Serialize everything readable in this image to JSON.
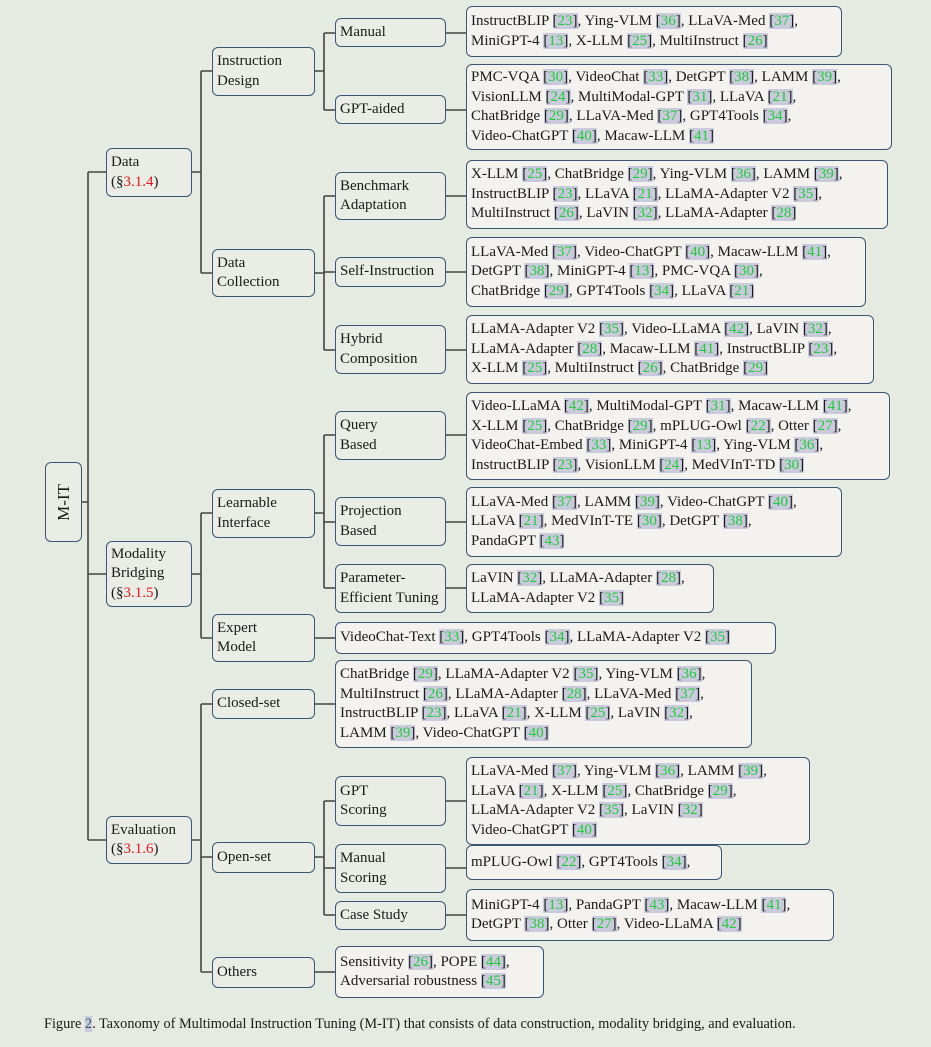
{
  "root": {
    "label": "M-IT"
  },
  "level1": [
    {
      "label": "Data",
      "section": "3.1.4"
    },
    {
      "label": "Modality Bridging",
      "section": "3.1.5"
    },
    {
      "label": "Evaluation",
      "section": "3.1.6"
    }
  ],
  "level2": {
    "instruction_design": [
      "Instruction",
      "Design"
    ],
    "data_collection": [
      "Data",
      "Collection"
    ],
    "learnable_interface": [
      "Learnable",
      "Interface"
    ],
    "expert_model": [
      "Expert",
      "Model"
    ],
    "closed_set": [
      "Closed-set"
    ],
    "open_set": [
      "Open-set"
    ],
    "others": [
      "Others"
    ]
  },
  "level3": {
    "manual": [
      "Manual"
    ],
    "gpt_aided": [
      "GPT-aided"
    ],
    "benchmark_adaptation": [
      "Benchmark",
      "Adaptation"
    ],
    "self_instruction": [
      "Self-Instruction"
    ],
    "hybrid_composition": [
      "Hybrid",
      "Composition"
    ],
    "query_based": [
      "Query",
      "Based"
    ],
    "projection_based": [
      "Projection",
      "Based"
    ],
    "parameter_efficient": [
      "Parameter-",
      "Efficient Tuning"
    ],
    "gpt_scoring": [
      "GPT",
      "Scoring"
    ],
    "manual_scoring": [
      "Manual",
      "Scoring"
    ],
    "case_study": [
      "Case Study"
    ]
  },
  "leaves": {
    "manual": [
      "InstructBLIP [23], Ying-VLM [36], LLaVA-Med [37],",
      "MiniGPT-4 [13], X-LLM [25], MultiInstruct [26]"
    ],
    "gpt_aided": [
      "PMC-VQA [30], VideoChat [33], DetGPT [38], LAMM [39],",
      "VisionLLM [24], MultiModal-GPT [31], LLaVA [21],",
      "ChatBridge [29], LLaVA-Med [37], GPT4Tools [34],",
      "Video-ChatGPT [40], Macaw-LLM [41]"
    ],
    "benchmark_adaptation": [
      "X-LLM [25], ChatBridge [29], Ying-VLM [36], LAMM [39],",
      "InstructBLIP [23], LLaVA [21], LLaMA-Adapter V2 [35],",
      "MultiInstruct [26], LaVIN [32], LLaMA-Adapter [28]"
    ],
    "self_instruction": [
      "LLaVA-Med [37], Video-ChatGPT [40], Macaw-LLM [41],",
      "DetGPT [38],  MiniGPT-4 [13], PMC-VQA [30],",
      "ChatBridge [29], GPT4Tools [34], LLaVA [21]"
    ],
    "hybrid_composition": [
      "LLaMA-Adapter V2 [35], Video-LLaMA [42], LaVIN [32],",
      "LLaMA-Adapter [28], Macaw-LLM [41], InstructBLIP [23],",
      "X-LLM [25], MultiInstruct [26], ChatBridge [29]"
    ],
    "query_based": [
      "Video-LLaMA [42], MultiModal-GPT [31], Macaw-LLM [41],",
      "X-LLM [25], ChatBridge [29], mPLUG-Owl [22], Otter [27],",
      "VideoChat-Embed [33], MiniGPT-4 [13], Ying-VLM [36],",
      "InstructBLIP [23], VisionLLM [24], MedVInT-TD [30]"
    ],
    "projection_based": [
      "LLaVA-Med [37], LAMM [39], Video-ChatGPT [40],",
      "LLaVA [21], MedVInT-TE [30], DetGPT [38],",
      "PandaGPT [43]"
    ],
    "parameter_efficient": [
      "LaVIN [32], LLaMA-Adapter [28],",
      "LLaMA-Adapter V2 [35]"
    ],
    "expert_model": [
      "VideoChat-Text [33], GPT4Tools [34], LLaMA-Adapter V2 [35]"
    ],
    "closed_set": [
      "ChatBridge [29], LLaMA-Adapter V2 [35], Ying-VLM [36],",
      "MultiInstruct [26], LLaMA-Adapter [28], LLaVA-Med [37],",
      "InstructBLIP [23], LLaVA [21], X-LLM [25], LaVIN [32],",
      "LAMM [39], Video-ChatGPT [40]"
    ],
    "gpt_scoring": [
      "LLaVA-Med [37], Ying-VLM [36], LAMM [39],",
      "LLaVA [21], X-LLM [25], ChatBridge [29],",
      "LLaMA-Adapter V2 [35], LaVIN [32]",
      "Video-ChatGPT [40]"
    ],
    "manual_scoring": [
      "mPLUG-Owl [22], GPT4Tools [34],"
    ],
    "case_study": [
      "MiniGPT-4 [13], PandaGPT [43], Macaw-LLM [41],",
      "DetGPT [38], Otter [27], Video-LLaMA [42]"
    ],
    "others": [
      "Sensitivity [26], POPE [44],",
      "Adversarial robustness [45]"
    ]
  },
  "caption": {
    "prefix": "Figure ",
    "number": "2",
    "text": ". Taxonomy of Multimodal Instruction Tuning (M-IT) that consists of data construction, modality bridging, and evaluation."
  },
  "colors": {
    "background": "#e6ebe2",
    "box_border": "#3a5677",
    "leaf_fill": "#f4f2ef",
    "section_ref": "#e8161b",
    "citation_number": "#22c93a",
    "citation_highlight": "#c9cbdc"
  }
}
